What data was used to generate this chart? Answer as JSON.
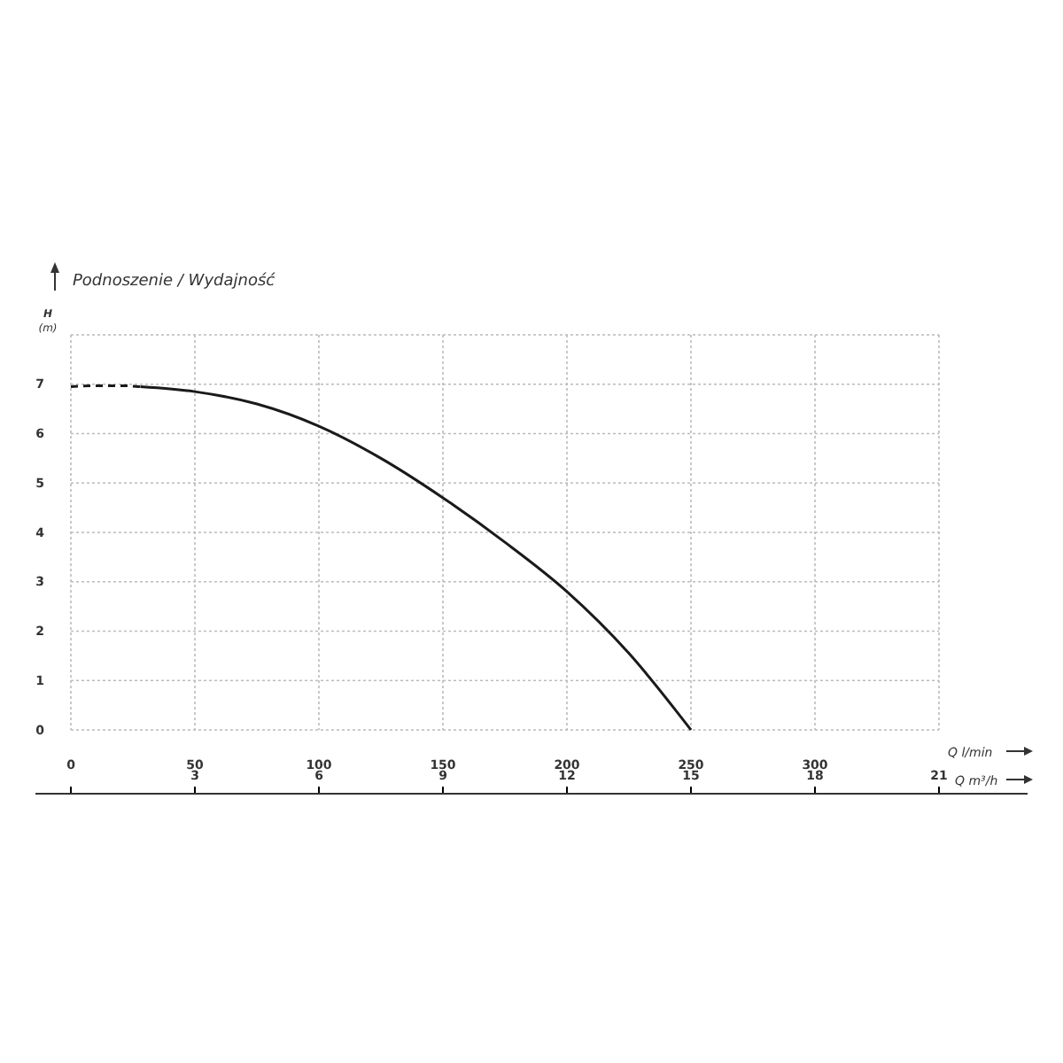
{
  "chart_data": {
    "type": "line",
    "title": "Podnoszenie / Wydajność",
    "ylabel": "H\n(m)",
    "xlabel": "Q l/min",
    "x2label": "Q m³/h",
    "xlim": [
      0,
      350
    ],
    "xticks": [
      0,
      50,
      100,
      150,
      200,
      250,
      300,
      {
        "value": 350,
        "label": null
      }
    ],
    "x2lim": [
      0,
      21
    ],
    "x2ticks": [
      {
        "value": 0,
        "label": null
      },
      3,
      6,
      9,
      12,
      15,
      18,
      21
    ],
    "ylim": [
      0,
      8
    ],
    "yticks": [
      0,
      1,
      2,
      3,
      4,
      5,
      6,
      7,
      {
        "value": 8,
        "label": null
      }
    ],
    "grid": true,
    "series": [
      {
        "color": "#1a1a1a",
        "line_style": "dashed",
        "x": [
          0,
          10,
          20,
          28
        ],
        "values": [
          6.95,
          6.97,
          6.97,
          6.95
        ]
      },
      {
        "color": "#1a1a1a",
        "line_style": "solid",
        "x": [
          28,
          50,
          75,
          100,
          125,
          150,
          175,
          200,
          225,
          250
        ],
        "values": [
          6.95,
          6.85,
          6.6,
          6.15,
          5.5,
          4.7,
          3.8,
          2.8,
          1.55,
          0
        ]
      }
    ]
  }
}
